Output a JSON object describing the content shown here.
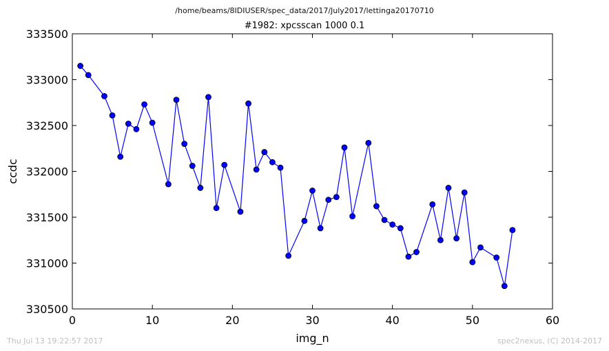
{
  "header": {
    "path": "/home/beams/8IDIUSER/spec_data/2017/July2017/lettinga20170710",
    "title": "#1982: xpcsscan 1000 0.1"
  },
  "footer": {
    "timestamp": "Thu Jul 13 19:22:57 2017",
    "credit": "spec2nexus, (C) 2014-2017"
  },
  "chart_data": {
    "type": "line",
    "title": "#1982: xpcsscan 1000 0.1",
    "xlabel": "img_n",
    "ylabel": "ccdc",
    "xlim": [
      0,
      60
    ],
    "ylim": [
      330500,
      333500
    ],
    "xticks": [
      0,
      10,
      20,
      30,
      40,
      50,
      60
    ],
    "yticks": [
      330500,
      331000,
      331500,
      332000,
      332500,
      333000,
      333500
    ],
    "grid": false,
    "legend": "none",
    "series": [
      {
        "color": "#0000ff",
        "marker": "circle",
        "x": [
          1,
          2,
          4,
          5,
          6,
          7,
          8,
          9,
          10,
          12,
          13,
          14,
          15,
          16,
          17,
          18,
          19,
          21,
          22,
          23,
          24,
          25,
          26,
          27,
          29,
          30,
          31,
          32,
          33,
          34,
          35,
          37,
          38,
          39,
          40,
          41,
          42,
          43,
          45,
          46,
          47,
          48,
          49,
          50,
          51,
          53,
          54,
          55
        ],
        "y": [
          333150,
          333050,
          332820,
          332610,
          332160,
          332520,
          332460,
          332730,
          332530,
          331860,
          332780,
          332300,
          332060,
          331820,
          332810,
          331600,
          332070,
          331560,
          332740,
          332020,
          332210,
          332100,
          332040,
          331080,
          331460,
          331790,
          331380,
          331690,
          331720,
          332260,
          331510,
          332310,
          331620,
          331470,
          331420,
          331380,
          331070,
          331120,
          331640,
          331250,
          331820,
          331270,
          331770,
          331010,
          331170,
          331060,
          330750,
          331360
        ]
      }
    ]
  }
}
